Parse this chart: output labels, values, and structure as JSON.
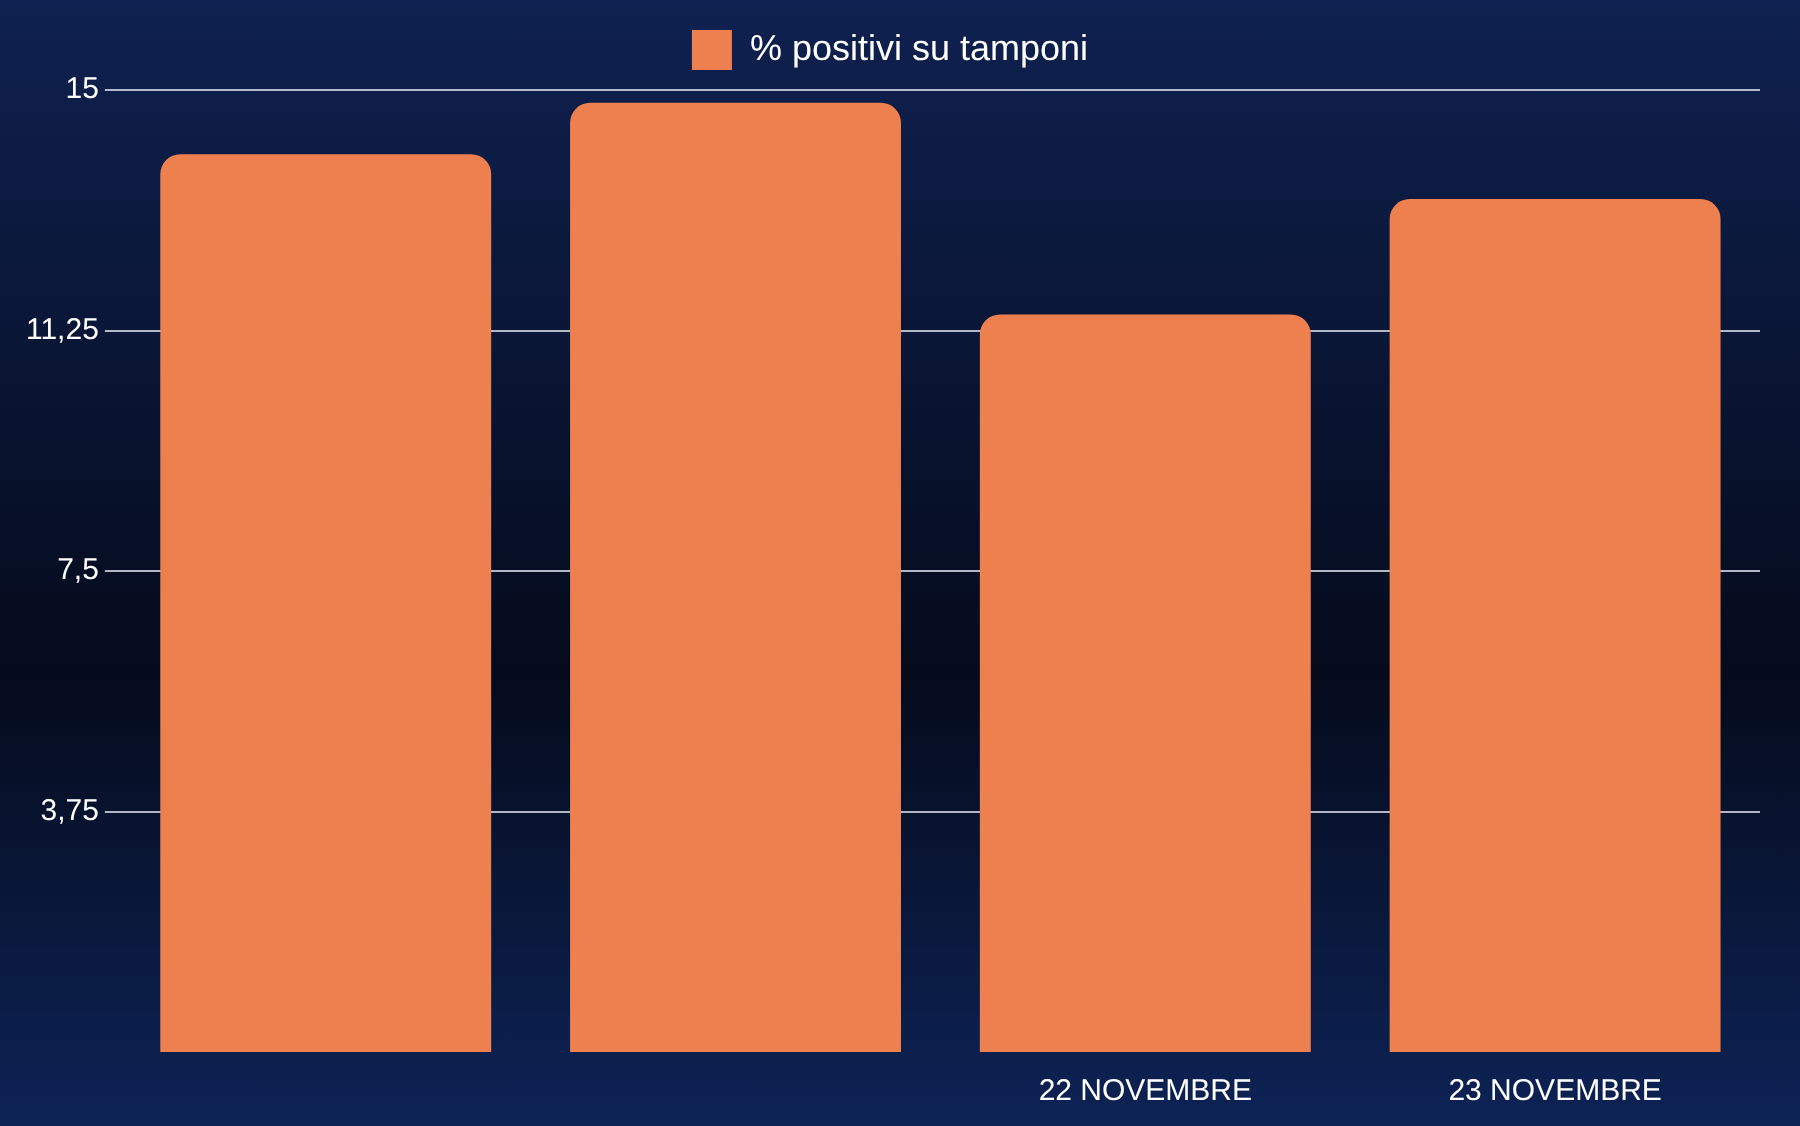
{
  "chart_data": {
    "type": "bar",
    "categories": [
      null,
      null,
      "22 NOVEMBRE",
      "23 NOVEMBRE"
    ],
    "series": [
      {
        "name": "% positivi su tamponi",
        "color": "#ee8050",
        "values": [
          14,
          14.8,
          11.5,
          13.3
        ]
      }
    ],
    "ylim": [
      0,
      15
    ],
    "yticks": [
      {
        "value": 3.75,
        "label": "3,75"
      },
      {
        "value": 7.5,
        "label": "7,5"
      },
      {
        "value": 11.25,
        "label": "11,25"
      },
      15
    ],
    "grid": "y",
    "legend": "top"
  }
}
